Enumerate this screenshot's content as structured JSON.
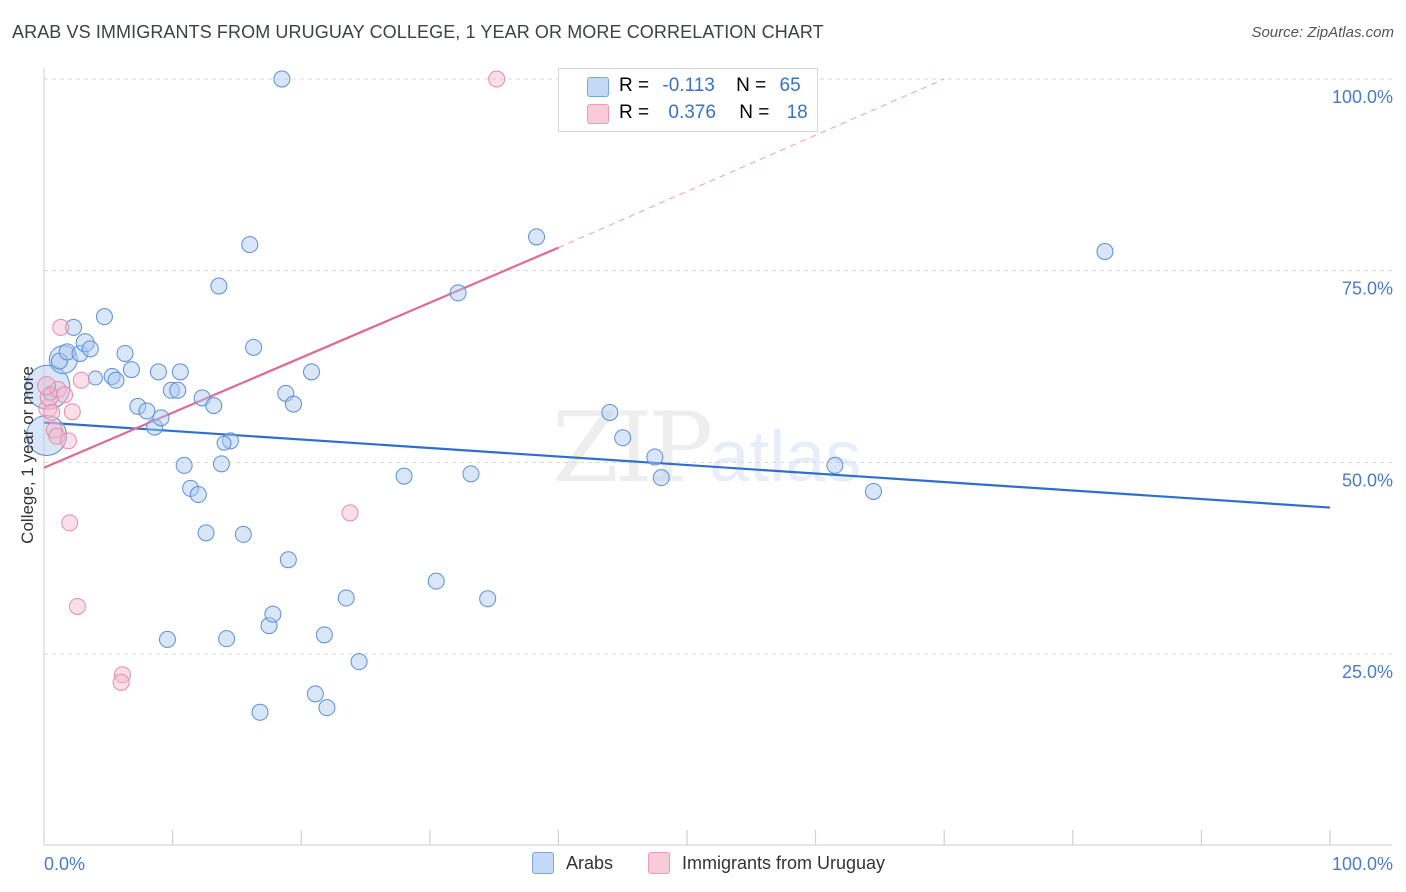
{
  "header": {
    "title": "ARAB VS IMMIGRANTS FROM URUGUAY COLLEGE, 1 YEAR OR MORE CORRELATION CHART",
    "source": "Source: ZipAtlas.com"
  },
  "watermark": {
    "zip": "ZIP",
    "atlas": "atlas"
  },
  "legend": {
    "rows": [
      {
        "r_label": "R =",
        "r_value": "-0.113",
        "n_label": "N =",
        "n_value": "65",
        "color": "#a8c8f0"
      },
      {
        "r_label": "R =",
        "r_value": "0.376",
        "n_label": "N =",
        "n_value": "18",
        "color": "#f7b8cb"
      }
    ]
  },
  "bottom_legend": {
    "arabs": "Arabs",
    "uruguay": "Immigrants from Uruguay"
  },
  "colors": {
    "blue_fill": "#a8c8f0",
    "blue_stroke": "#5b8fd6",
    "blue_line": "#2f6fcc",
    "pink_fill": "#f7b8cb",
    "pink_stroke": "#e88aa6",
    "pink_line": "#e06a92",
    "grid": "#d8d8d8"
  },
  "chart_data": {
    "type": "scatter",
    "title": "ARAB VS IMMIGRANTS FROM URUGUAY COLLEGE, 1 YEAR OR MORE CORRELATION CHART",
    "xlabel": "",
    "ylabel": "College, 1 year or more",
    "xlim": [
      0,
      100
    ],
    "ylim": [
      0,
      102
    ],
    "x_tick_labels": [
      "0.0%",
      "100.0%"
    ],
    "y_ticks": [
      25,
      50,
      75,
      100
    ],
    "y_tick_labels": [
      "25.0%",
      "50.0%",
      "75.0%",
      "100.0%"
    ],
    "grid": true,
    "series": [
      {
        "name": "Arabs",
        "r": -0.113,
        "n": 65,
        "trend": {
          "x": [
            0,
            100
          ],
          "y": [
            55.2,
            44.1
          ]
        },
        "points": [
          [
            0.2,
            53.5,
            20
          ],
          [
            0.3,
            59.8,
            22
          ],
          [
            1.5,
            63.4,
            14
          ],
          [
            1.2,
            63.2,
            8
          ],
          [
            1.8,
            64.4,
            8
          ],
          [
            2.3,
            67.6,
            8
          ],
          [
            2.8,
            64.2,
            8
          ],
          [
            3.2,
            65.6,
            9
          ],
          [
            3.6,
            64.8,
            8
          ],
          [
            4.7,
            69.0,
            8
          ],
          [
            5.3,
            61.2,
            8
          ],
          [
            5.6,
            60.7,
            8
          ],
          [
            6.3,
            64.2,
            8
          ],
          [
            6.8,
            62.1,
            8
          ],
          [
            7.3,
            57.3,
            8
          ],
          [
            8.0,
            56.7,
            8
          ],
          [
            8.6,
            54.6,
            8
          ],
          [
            8.9,
            61.8,
            8
          ],
          [
            9.1,
            55.8,
            8
          ],
          [
            9.6,
            26.9,
            8
          ],
          [
            9.9,
            59.4,
            8
          ],
          [
            10.4,
            59.4,
            8
          ],
          [
            10.6,
            61.8,
            8
          ],
          [
            10.9,
            49.6,
            8
          ],
          [
            11.4,
            46.6,
            8
          ],
          [
            12.0,
            45.8,
            8
          ],
          [
            12.3,
            58.4,
            8
          ],
          [
            12.6,
            40.8,
            8
          ],
          [
            13.2,
            57.4,
            8
          ],
          [
            13.6,
            73.0,
            8
          ],
          [
            13.8,
            49.8,
            8
          ],
          [
            14.2,
            27.0,
            8
          ],
          [
            14.5,
            52.8,
            8
          ],
          [
            15.5,
            40.6,
            8
          ],
          [
            16.0,
            78.4,
            8
          ],
          [
            16.3,
            65.0,
            8
          ],
          [
            16.8,
            17.4,
            8
          ],
          [
            17.5,
            28.7,
            8
          ],
          [
            17.8,
            30.2,
            8
          ],
          [
            18.5,
            100.0,
            8
          ],
          [
            18.8,
            59.0,
            8
          ],
          [
            19.0,
            37.3,
            8
          ],
          [
            19.4,
            57.6,
            8
          ],
          [
            20.8,
            61.8,
            8
          ],
          [
            21.1,
            19.8,
            8
          ],
          [
            21.8,
            27.5,
            8
          ],
          [
            22.0,
            18.0,
            8
          ],
          [
            23.5,
            32.3,
            8
          ],
          [
            24.5,
            24.0,
            8
          ],
          [
            28.0,
            48.2,
            8
          ],
          [
            30.5,
            34.5,
            8
          ],
          [
            32.2,
            72.1,
            8
          ],
          [
            33.2,
            48.5,
            8
          ],
          [
            34.5,
            32.2,
            8
          ],
          [
            38.3,
            79.4,
            8
          ],
          [
            44.0,
            56.5,
            8
          ],
          [
            45.0,
            53.2,
            8
          ],
          [
            47.5,
            50.7,
            8
          ],
          [
            48.0,
            48.0,
            8
          ],
          [
            61.5,
            49.6,
            8
          ],
          [
            64.5,
            46.2,
            8
          ],
          [
            82.5,
            77.5,
            8
          ],
          [
            4.0,
            61.0,
            7
          ],
          [
            14.0,
            52.5,
            7
          ],
          [
            0.5,
            59.0,
            7
          ]
        ]
      },
      {
        "name": "Immigrants from Uruguay",
        "r": 0.376,
        "n": 18,
        "trend": {
          "x": [
            0,
            40
          ],
          "y": [
            49.3,
            78.0
          ]
        },
        "trend_dashed": {
          "x": [
            40,
            70
          ],
          "y": [
            78.0,
            100.0
          ]
        },
        "points": [
          [
            0.3,
            57.0,
            9
          ],
          [
            0.4,
            58.5,
            9
          ],
          [
            0.6,
            56.5,
            8
          ],
          [
            0.8,
            54.2,
            8
          ],
          [
            1.0,
            53.4,
            8
          ],
          [
            1.1,
            59.5,
            8
          ],
          [
            1.3,
            67.6,
            8
          ],
          [
            1.6,
            58.8,
            8
          ],
          [
            1.9,
            52.8,
            8
          ],
          [
            2.0,
            42.1,
            8
          ],
          [
            2.2,
            56.6,
            8
          ],
          [
            2.6,
            31.2,
            8
          ],
          [
            2.9,
            60.7,
            8
          ],
          [
            6.1,
            22.3,
            8
          ],
          [
            6.0,
            21.3,
            8
          ],
          [
            23.8,
            43.4,
            8
          ],
          [
            35.2,
            100.0,
            8
          ],
          [
            0.2,
            60.0,
            9
          ]
        ]
      }
    ]
  }
}
